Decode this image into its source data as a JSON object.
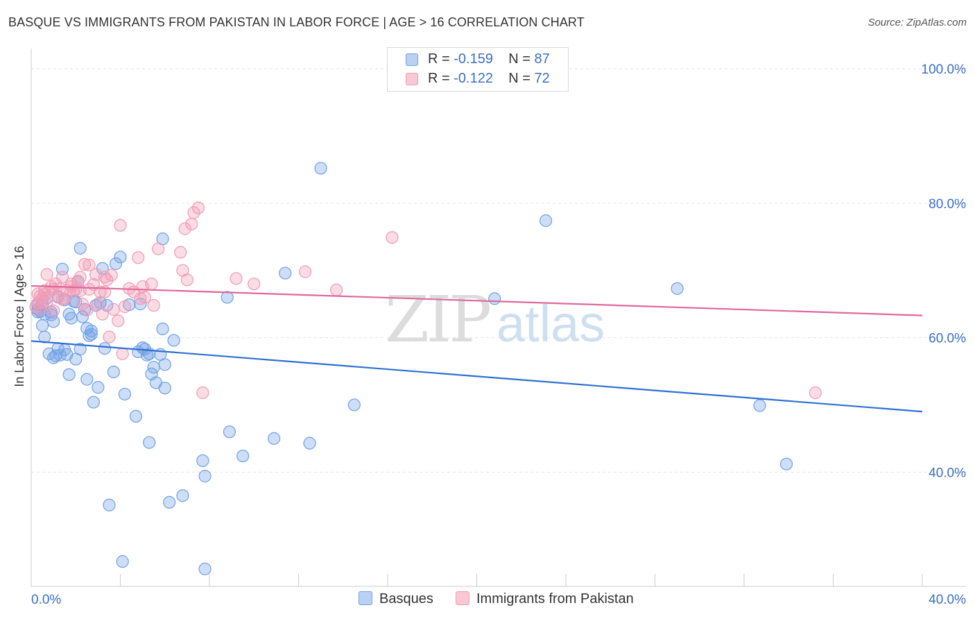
{
  "title": "BASQUE VS IMMIGRANTS FROM PAKISTAN IN LABOR FORCE | AGE > 16 CORRELATION CHART",
  "source": "Source: ZipAtlas.com",
  "legend": {
    "basque": {
      "r_label": "R = ",
      "r_value": "-0.159",
      "n_label": "N = ",
      "n_value": "87"
    },
    "pakistan": {
      "r_label": "R = ",
      "r_value": "-0.122",
      "n_label": "N = ",
      "n_value": "72"
    }
  },
  "colors": {
    "basque": "#6fa1e6",
    "basque_line": "#2e6fd1",
    "pakistan": "#f19ab5",
    "pakistan_line": "#e0679a",
    "axis_text": "#3a6fc4"
  },
  "chart_data": {
    "type": "scatter",
    "xlabel": "",
    "ylabel": "In Labor Force | Age > 16",
    "xlim": [
      0,
      40
    ],
    "ylim": [
      23,
      103
    ],
    "x_tick_labels": [
      "0.0%",
      "40.0%"
    ],
    "y_ticks": [
      40,
      60,
      80,
      100
    ],
    "y_tick_labels": [
      "40.0%",
      "60.0%",
      "80.0%",
      "100.0%"
    ],
    "watermark": {
      "zip": "ZIP",
      "atlas": "atlas"
    },
    "series": [
      {
        "name": "Basques",
        "trend": {
          "x": [
            0,
            40
          ],
          "y": [
            59.5,
            49.0
          ]
        },
        "points": [
          [
            0.3,
            63.8
          ],
          [
            0.3,
            64.2
          ],
          [
            0.5,
            64.9
          ],
          [
            0.5,
            61.8
          ],
          [
            0.6,
            60.1
          ],
          [
            0.6,
            63.5
          ],
          [
            0.7,
            65.9
          ],
          [
            0.8,
            57.6
          ],
          [
            0.9,
            63.8
          ],
          [
            1.0,
            62.4
          ],
          [
            1.1,
            57.3
          ],
          [
            1.2,
            58.4
          ],
          [
            1.3,
            57.4
          ],
          [
            1.4,
            70.2
          ],
          [
            1.5,
            65.6
          ],
          [
            1.6,
            57.5
          ],
          [
            1.7,
            54.5
          ],
          [
            1.8,
            62.9
          ],
          [
            1.9,
            65.4
          ],
          [
            2.0,
            56.8
          ],
          [
            2.1,
            68.3
          ],
          [
            2.2,
            58.3
          ],
          [
            2.2,
            73.3
          ],
          [
            2.3,
            63.1
          ],
          [
            2.5,
            53.8
          ],
          [
            2.5,
            61.4
          ],
          [
            2.6,
            60.3
          ],
          [
            2.7,
            61.0
          ],
          [
            2.8,
            50.4
          ],
          [
            2.9,
            64.8
          ],
          [
            3.0,
            52.6
          ],
          [
            3.2,
            70.3
          ],
          [
            3.3,
            58.4
          ],
          [
            3.5,
            35.1
          ],
          [
            3.7,
            54.9
          ],
          [
            3.8,
            71.0
          ],
          [
            4.0,
            72.0
          ],
          [
            4.1,
            26.7
          ],
          [
            4.2,
            51.6
          ],
          [
            4.7,
            48.3
          ],
          [
            4.8,
            57.9
          ],
          [
            4.9,
            65.0
          ],
          [
            5.0,
            58.5
          ],
          [
            5.1,
            58.3
          ],
          [
            5.2,
            57.4
          ],
          [
            5.3,
            44.4
          ],
          [
            5.4,
            54.6
          ],
          [
            5.5,
            55.6
          ],
          [
            5.6,
            53.3
          ],
          [
            5.8,
            57.5
          ],
          [
            5.9,
            61.3
          ],
          [
            5.9,
            74.7
          ],
          [
            6.0,
            52.5
          ],
          [
            6.4,
            59.6
          ],
          [
            6.2,
            35.5
          ],
          [
            6.8,
            36.5
          ],
          [
            7.7,
            41.7
          ],
          [
            7.8,
            39.4
          ],
          [
            7.8,
            25.6
          ],
          [
            8.8,
            66.0
          ],
          [
            8.9,
            46.0
          ],
          [
            9.5,
            42.4
          ],
          [
            10.9,
            45.0
          ],
          [
            11.4,
            69.6
          ],
          [
            12.5,
            44.3
          ],
          [
            13.0,
            85.2
          ],
          [
            14.5,
            50.0
          ],
          [
            20.8,
            65.8
          ],
          [
            23.1,
            77.4
          ],
          [
            29.0,
            67.3
          ],
          [
            32.7,
            49.9
          ],
          [
            33.9,
            41.2
          ],
          [
            0.3,
            64.9
          ],
          [
            0.4,
            63.9
          ],
          [
            0.9,
            63.4
          ],
          [
            1.2,
            66.1
          ],
          [
            1.7,
            63.5
          ],
          [
            2.0,
            65.3
          ],
          [
            2.4,
            64.2
          ],
          [
            3.1,
            65.2
          ],
          [
            3.4,
            64.8
          ],
          [
            1.0,
            57.0
          ],
          [
            1.5,
            58.2
          ],
          [
            4.4,
            64.9
          ],
          [
            2.7,
            60.5
          ],
          [
            5.3,
            57.6
          ],
          [
            6.0,
            56.0
          ]
        ]
      },
      {
        "name": "Immigrants from Pakistan",
        "trend": {
          "x": [
            0,
            40
          ],
          "y": [
            67.7,
            63.3
          ]
        },
        "points": [
          [
            0.2,
            64.6
          ],
          [
            0.3,
            65.2
          ],
          [
            0.3,
            66.5
          ],
          [
            0.4,
            66.2
          ],
          [
            0.4,
            64.2
          ],
          [
            0.5,
            65.9
          ],
          [
            0.6,
            67.0
          ],
          [
            0.7,
            69.4
          ],
          [
            0.8,
            66.8
          ],
          [
            0.9,
            67.6
          ],
          [
            1.0,
            67.2
          ],
          [
            1.1,
            68.0
          ],
          [
            1.2,
            66.0
          ],
          [
            1.3,
            67.3
          ],
          [
            1.4,
            69.0
          ],
          [
            1.5,
            65.8
          ],
          [
            1.6,
            67.0
          ],
          [
            1.8,
            68.0
          ],
          [
            1.9,
            66.9
          ],
          [
            2.0,
            67.2
          ],
          [
            2.1,
            68.4
          ],
          [
            2.2,
            67.0
          ],
          [
            2.3,
            65.0
          ],
          [
            2.4,
            70.9
          ],
          [
            2.5,
            64.1
          ],
          [
            2.6,
            70.8
          ],
          [
            2.8,
            67.9
          ],
          [
            2.9,
            69.4
          ],
          [
            3.0,
            65.0
          ],
          [
            3.1,
            66.8
          ],
          [
            3.2,
            63.5
          ],
          [
            3.3,
            69.0
          ],
          [
            3.4,
            68.6
          ],
          [
            3.5,
            60.1
          ],
          [
            3.6,
            69.3
          ],
          [
            3.7,
            64.2
          ],
          [
            3.9,
            62.5
          ],
          [
            4.0,
            76.7
          ],
          [
            4.1,
            57.6
          ],
          [
            4.2,
            64.6
          ],
          [
            4.6,
            66.8
          ],
          [
            4.8,
            71.9
          ],
          [
            4.9,
            65.8
          ],
          [
            5.1,
            66.0
          ],
          [
            5.4,
            68.0
          ],
          [
            5.5,
            64.8
          ],
          [
            5.7,
            73.2
          ],
          [
            6.7,
            72.7
          ],
          [
            6.8,
            70.0
          ],
          [
            6.9,
            76.2
          ],
          [
            7.0,
            68.6
          ],
          [
            7.2,
            76.9
          ],
          [
            7.3,
            78.6
          ],
          [
            7.5,
            79.3
          ],
          [
            7.7,
            51.8
          ],
          [
            9.2,
            68.8
          ],
          [
            10.0,
            68.0
          ],
          [
            12.3,
            69.8
          ],
          [
            13.7,
            67.1
          ],
          [
            16.2,
            74.9
          ],
          [
            35.2,
            51.8
          ],
          [
            0.5,
            65.4
          ],
          [
            0.6,
            66.5
          ],
          [
            0.7,
            65.0
          ],
          [
            1.0,
            64.0
          ],
          [
            1.4,
            65.7
          ],
          [
            1.8,
            67.6
          ],
          [
            2.2,
            69.0
          ],
          [
            2.6,
            67.2
          ],
          [
            3.3,
            66.8
          ],
          [
            4.4,
            67.3
          ],
          [
            5.0,
            67.6
          ]
        ]
      }
    ]
  },
  "bottom_legend": {
    "basque": "Basques",
    "pakistan": "Immigrants from Pakistan"
  }
}
